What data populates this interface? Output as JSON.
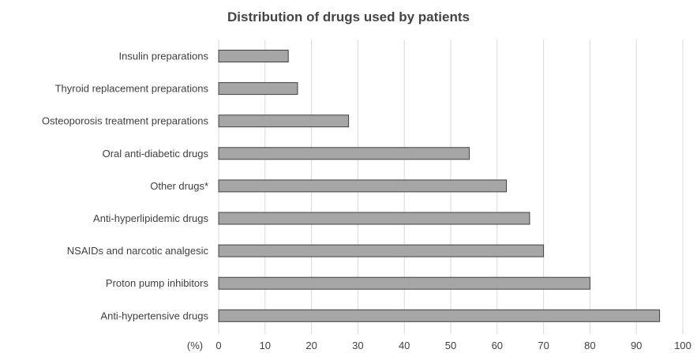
{
  "chart_data": {
    "type": "bar",
    "orientation": "horizontal",
    "title": "Distribution of drugs used by patients",
    "xlabel": "(%)",
    "ylabel": "",
    "categories": [
      "Insulin preparations",
      "Thyroid replacement preparations",
      "Osteoporosis treatment preparations",
      "Oral anti-diabetic drugs",
      "Other drugs*",
      "Anti-hyperlipidemic drugs",
      "NSAIDs and narcotic analgesic",
      "Proton pump inhibitors",
      "Anti-hypertensive drugs"
    ],
    "values": [
      15,
      17,
      28,
      54,
      62,
      67,
      70,
      80,
      95
    ],
    "xlim": [
      0,
      100
    ],
    "xticks": [
      0,
      10,
      20,
      30,
      40,
      50,
      60,
      70,
      80,
      90,
      100
    ],
    "grid": "vertical",
    "legend": "none",
    "colors": {
      "bar_fill": "#a6a6a6",
      "bar_stroke": "#404040",
      "grid": "#d9d9d9",
      "text": "#404040"
    }
  }
}
